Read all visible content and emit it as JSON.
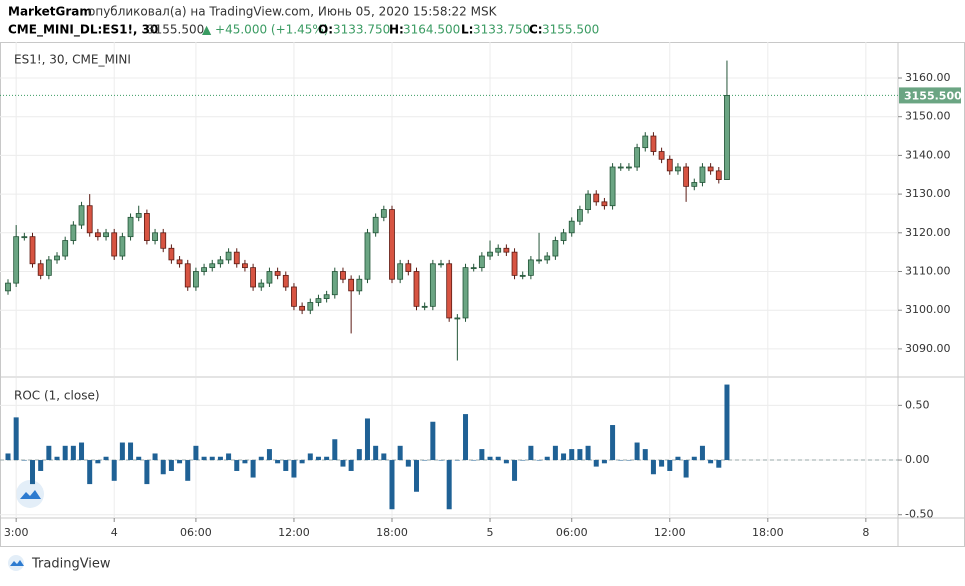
{
  "header": {
    "author": "MarketGram",
    "published": "опубликовал(а) на TradingView.com, Июнь 05, 2020 15:58:22 MSK",
    "symbol": "CME_MINI_DL:ES1!, 30",
    "last": "3155.500",
    "change": "▲ +45.000 (+1.45%)",
    "ohlc": [
      {
        "label": "O:",
        "value": "3133.750"
      },
      {
        "label": "H:",
        "value": "3164.500"
      },
      {
        "label": "L:",
        "value": "3133.750"
      },
      {
        "label": "C:",
        "value": "3155.500"
      }
    ]
  },
  "footer": {
    "brand": "TradingView"
  },
  "chart_data": [
    {
      "type": "candlestick",
      "title": "ES1!, 30, CME_MINI",
      "up_color": "#6ba583",
      "down_color": "#d75442",
      "up_edge": "#225437",
      "down_edge": "#5b1a13",
      "grid": true,
      "last_label": "3155.500",
      "ylim": [
        3083,
        3169.3
      ],
      "yticks": [
        {
          "value": 3090,
          "label": "3090.00"
        },
        {
          "value": 3100,
          "label": "3100.00"
        },
        {
          "value": 3110,
          "label": "3110.00"
        },
        {
          "value": 3120,
          "label": "3120.00"
        },
        {
          "value": 3130,
          "label": "3130.00"
        },
        {
          "value": 3140,
          "label": "3140.00"
        },
        {
          "value": 3150,
          "label": "3150.00"
        },
        {
          "value": 3160,
          "label": "3160.00"
        }
      ],
      "categories": [
        null,
        "3:00",
        null,
        null,
        null,
        null,
        null,
        null,
        null,
        null,
        null,
        null,
        null,
        "4",
        null,
        null,
        null,
        null,
        null,
        null,
        null,
        null,
        null,
        "06:00",
        null,
        null,
        null,
        null,
        null,
        null,
        null,
        null,
        null,
        null,
        null,
        "12:00",
        null,
        null,
        null,
        null,
        null,
        null,
        null,
        null,
        null,
        null,
        null,
        "18:00",
        null,
        null,
        null,
        null,
        null,
        null,
        null,
        null,
        null,
        null,
        null,
        "5",
        null,
        null,
        null,
        null,
        null,
        null,
        null,
        null,
        null,
        "06:00",
        null,
        null,
        null,
        null,
        null,
        null,
        null,
        null,
        null,
        null,
        null,
        "12:00",
        null,
        null,
        null,
        null,
        null,
        null,
        null,
        null,
        null,
        null,
        null,
        "18:00",
        null,
        null,
        null,
        null,
        null,
        null,
        null,
        null,
        null,
        null,
        null,
        "8"
      ],
      "open": [
        3105,
        3107,
        3119,
        3119,
        3112,
        3109,
        3113,
        3114,
        3118,
        3122,
        3127,
        3120,
        3119,
        3120,
        3114,
        3119,
        3124,
        3125,
        3118,
        3120,
        3116,
        3113,
        3112,
        3106,
        3110,
        3111,
        3112,
        3113,
        3115,
        3112,
        3111,
        3106,
        3107,
        3110,
        3109,
        3106,
        3101,
        3100,
        3102,
        3103,
        3104,
        3110,
        3108,
        3105,
        3108,
        3120,
        3124,
        3126,
        3108,
        3112,
        3110,
        3101,
        3101,
        3112,
        3112,
        3098,
        3098,
        3111,
        3111,
        3114,
        3115,
        3116,
        3115,
        3109,
        3109,
        3113,
        3113,
        3114,
        3118,
        3120,
        3123,
        3126,
        3130,
        3128,
        3127,
        3137,
        3137,
        3137,
        3142,
        3145,
        3141,
        3139,
        3136,
        3137,
        3132,
        3133,
        3137,
        3136,
        3133.75,
        null,
        null,
        null,
        null,
        null,
        null,
        null,
        null,
        null,
        null,
        null,
        null,
        null,
        null,
        null,
        null,
        null
      ],
      "high": [
        3108,
        3122,
        3120,
        3120,
        3113,
        3114,
        3115,
        3119,
        3123,
        3128,
        3130,
        3121,
        3121,
        3121,
        3120,
        3125,
        3127,
        3126,
        3121,
        3121,
        3117,
        3114,
        3113,
        3111,
        3112,
        3113,
        3114,
        3116,
        3116,
        3113,
        3112,
        3108,
        3111,
        3111,
        3110,
        3107,
        3102,
        3103,
        3104,
        3105,
        3111,
        3111,
        3109,
        3109,
        3121,
        3125,
        3127,
        3127,
        3113,
        3113,
        3111,
        3102,
        3113,
        3113,
        3113,
        3099,
        3112,
        3112,
        3115,
        3118,
        3117,
        3117,
        3116,
        3110,
        3114,
        3120,
        3115,
        3119,
        3121,
        3124,
        3127,
        3131,
        3131,
        3129,
        3138,
        3138,
        3138,
        3143,
        3146,
        3146,
        3142,
        3140,
        3138,
        3138,
        3134,
        3138,
        3138,
        3137,
        3164.5,
        null,
        null,
        null,
        null,
        null,
        null,
        null,
        null,
        null,
        null,
        null,
        null,
        null,
        null,
        null,
        null,
        null
      ],
      "low": [
        3104,
        3106,
        3118,
        3111,
        3108,
        3108,
        3112,
        3113,
        3117,
        3121,
        3119,
        3118,
        3118,
        3113,
        3113,
        3118,
        3123,
        3117,
        3117,
        3115,
        3112,
        3111,
        3105,
        3105,
        3109,
        3110,
        3111,
        3112,
        3111,
        3110,
        3105,
        3105,
        3106,
        3108,
        3105,
        3100,
        3099,
        3099,
        3101,
        3102,
        3103,
        3107,
        3094,
        3104,
        3107,
        3119,
        3123,
        3107,
        3107,
        3109,
        3100,
        3100,
        3100,
        3111,
        3097,
        3087,
        3097,
        3110,
        3110,
        3113,
        3114,
        3114,
        3108,
        3108,
        3108,
        3112,
        3112,
        3113,
        3117,
        3119,
        3122,
        3125,
        3127,
        3126,
        3126,
        3136,
        3136,
        3136,
        3141,
        3140,
        3138,
        3135,
        3135,
        3128,
        3131,
        3132,
        3135,
        3132.75,
        3133.75,
        null,
        null,
        null,
        null,
        null,
        null,
        null,
        null,
        null,
        null,
        null,
        null,
        null,
        null,
        null,
        null,
        null
      ],
      "close": [
        3107,
        3119,
        3119,
        3112,
        3109,
        3113,
        3114,
        3118,
        3122,
        3127,
        3120,
        3119,
        3120,
        3114,
        3119,
        3124,
        3125,
        3118,
        3120,
        3116,
        3113,
        3112,
        3106,
        3110,
        3111,
        3112,
        3113,
        3115,
        3112,
        3111,
        3106,
        3107,
        3110,
        3109,
        3106,
        3101,
        3100,
        3102,
        3103,
        3104,
        3110,
        3108,
        3105,
        3108,
        3120,
        3124,
        3126,
        3108,
        3112,
        3110,
        3101,
        3101,
        3112,
        3112,
        3098,
        3098,
        3111,
        3111,
        3114,
        3115,
        3116,
        3115,
        3109,
        3109,
        3113,
        3113,
        3114,
        3118,
        3120,
        3123,
        3126,
        3130,
        3128,
        3127,
        3137,
        3137,
        3137,
        3142,
        3145,
        3141,
        3139,
        3136,
        3137,
        3132,
        3133,
        3137,
        3136,
        3133.75,
        3155.5,
        null,
        null,
        null,
        null,
        null,
        null,
        null,
        null,
        null,
        null,
        null,
        null,
        null,
        null,
        null,
        null,
        null
      ]
    },
    {
      "type": "bar",
      "title": "ROC (1, close)",
      "color": "#1f6195",
      "grid": true,
      "ylim": [
        -0.53,
        0.75
      ],
      "yticks": [
        {
          "value": -0.5,
          "label": "-0.50"
        },
        {
          "value": 0,
          "label": "0.00"
        },
        {
          "value": 0.5,
          "label": "0.50"
        }
      ],
      "values": [
        0.06,
        0.39,
        0,
        -0.22,
        -0.1,
        0.13,
        0.03,
        0.13,
        0.13,
        0.16,
        -0.22,
        -0.03,
        0.03,
        -0.19,
        0.16,
        0.16,
        0.03,
        -0.22,
        0.06,
        -0.13,
        -0.1,
        -0.03,
        -0.19,
        0.13,
        0.03,
        0.03,
        0.03,
        0.06,
        -0.1,
        -0.03,
        -0.16,
        0.03,
        0.1,
        -0.03,
        -0.1,
        -0.16,
        -0.03,
        0.06,
        0.03,
        0.03,
        0.19,
        -0.06,
        -0.1,
        0.1,
        0.38,
        0.13,
        0.06,
        -0.45,
        0.13,
        -0.06,
        -0.29,
        0,
        0.35,
        0,
        -0.45,
        0,
        0.42,
        0,
        0.1,
        0.03,
        0.03,
        -0.03,
        -0.19,
        0,
        0.13,
        0,
        0.03,
        0.13,
        0.06,
        0.1,
        0.1,
        0.13,
        -0.06,
        -0.03,
        0.32,
        0,
        0,
        0.16,
        0.1,
        -0.13,
        -0.06,
        -0.1,
        0.03,
        -0.16,
        0.03,
        0.13,
        -0.03,
        -0.07,
        0.69,
        null,
        null,
        null,
        null,
        null,
        null,
        null,
        null,
        null,
        null,
        null,
        null,
        null,
        null,
        null,
        null,
        null
      ]
    }
  ]
}
